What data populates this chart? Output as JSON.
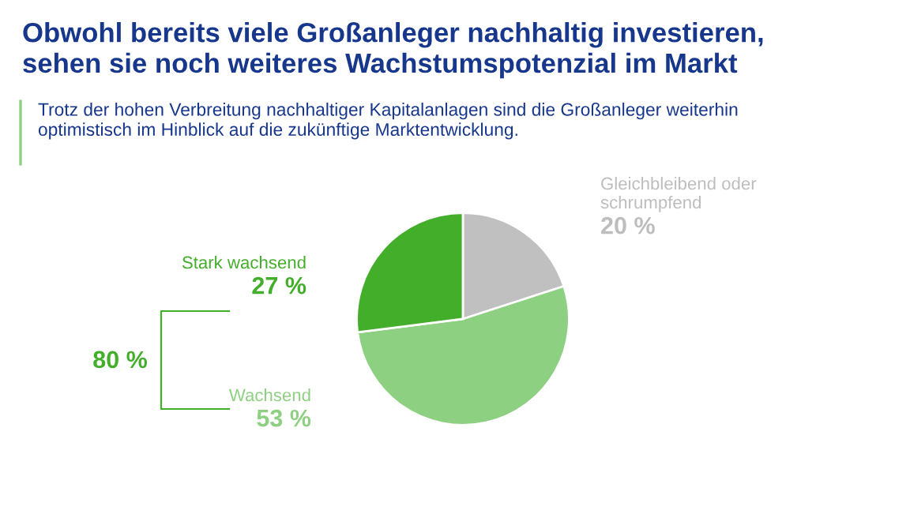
{
  "chart_data": {
    "type": "pie",
    "title": "Obwohl bereits viele Großanleger nachhaltig investieren,\nsehen sie noch weiteres Wachstumspotenzial im Markt",
    "subtitle": "Trotz der hohen Verbreitung nachhaltiger Kapitalanlagen sind die Großanleger weiterhin\noptimistisch im Hinblick auf die zukünftige Marktentwicklung.",
    "categories": [
      "Gleichbleibend oder\nschrumpfend",
      "Wachsend",
      "Stark wachsend"
    ],
    "values": [
      20,
      53,
      27
    ],
    "value_labels": [
      "20 %",
      "53 %",
      "27 %"
    ],
    "colors": [
      "#c0c0c0",
      "#8ed081",
      "#43ae2a"
    ],
    "annotations": [
      "80 %"
    ]
  }
}
